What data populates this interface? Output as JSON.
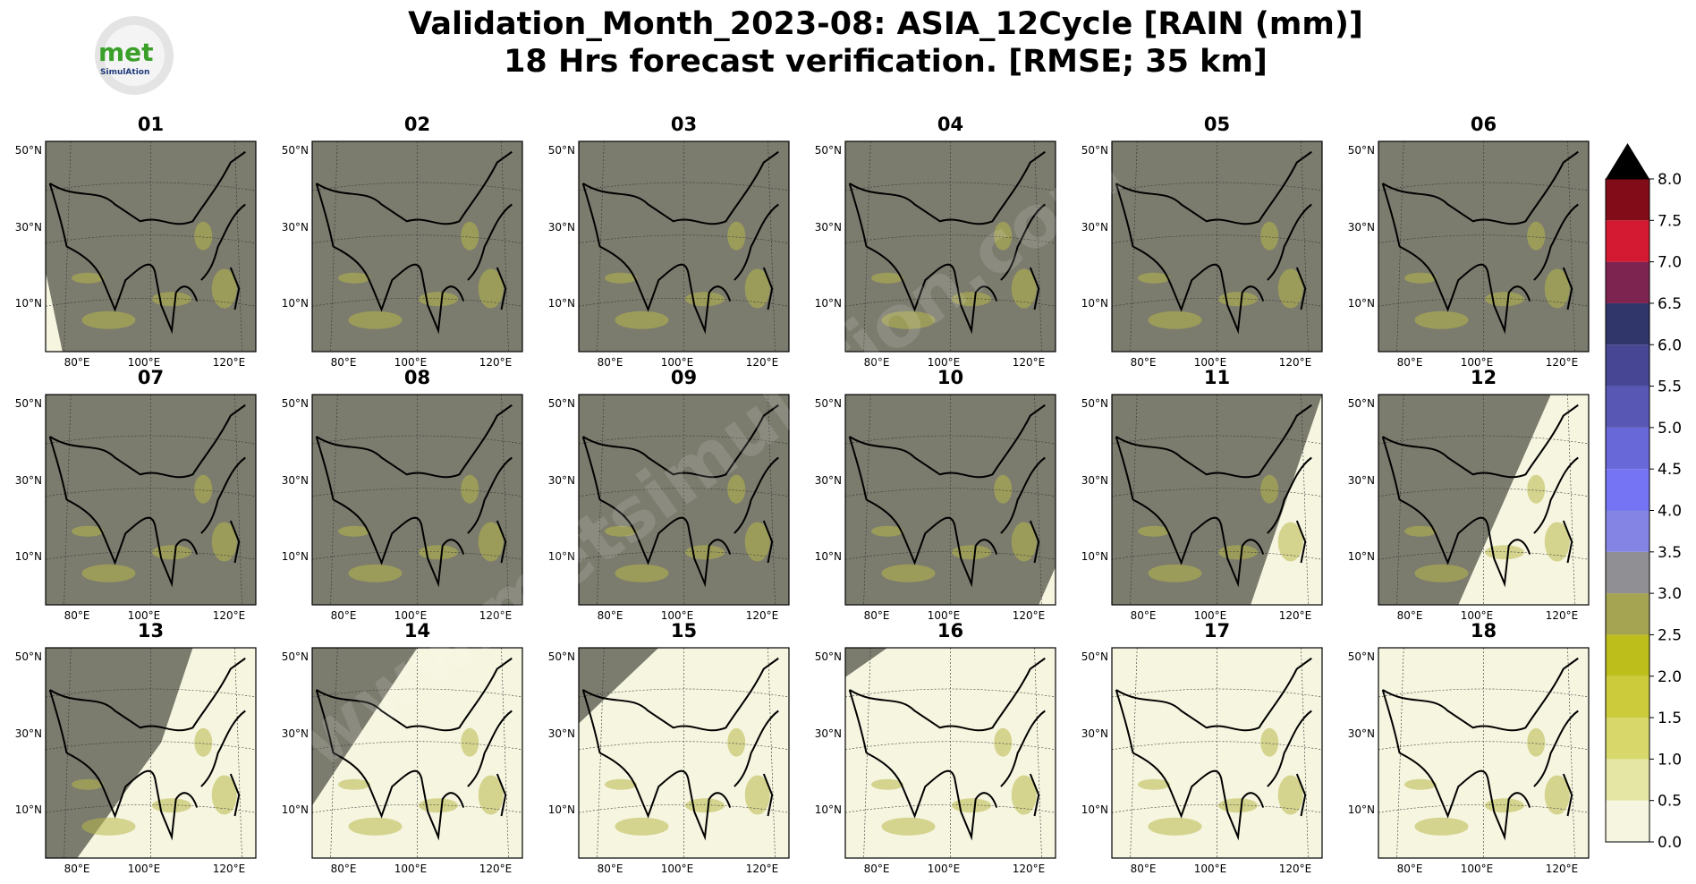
{
  "header": {
    "title_lines": [
      "Validation_Month_2023-08: ASIA_12Cycle [RAIN (mm)]",
      "18 Hrs forecast verification.  [RMSE; 35 km]"
    ]
  },
  "logo": {
    "text": "met",
    "subtext": "SimulAtion"
  },
  "watermark": "www.metsimulation.com",
  "panels": [
    "01",
    "02",
    "03",
    "04",
    "05",
    "06",
    "07",
    "08",
    "09",
    "10",
    "11",
    "12",
    "13",
    "14",
    "15",
    "16",
    "17",
    "18"
  ],
  "lat_labels": [
    "50°N",
    "30°N",
    "10°N"
  ],
  "lon_labels": [
    "80°E",
    "100°E",
    "120°E"
  ],
  "colorbar": {
    "ticks": [
      {
        "value": 0,
        "label": "0.0"
      },
      {
        "value": 0.5,
        "label": "0.5"
      },
      {
        "value": 1,
        "label": "1.0"
      },
      {
        "value": 1.5,
        "label": "1.5"
      },
      {
        "value": 2,
        "label": "2.0"
      },
      {
        "value": 2.5,
        "label": "2.5"
      },
      {
        "value": 3,
        "label": "3.0"
      },
      {
        "value": 3.5,
        "label": "3.5"
      },
      {
        "value": 4,
        "label": "4.0"
      },
      {
        "value": 4.5,
        "label": "4.5"
      },
      {
        "value": 5,
        "label": "5.0"
      },
      {
        "value": 5.5,
        "label": "5.5"
      },
      {
        "value": 6,
        "label": "6.0"
      },
      {
        "value": 6.5,
        "label": "6.5"
      },
      {
        "value": 7,
        "label": "7.0"
      },
      {
        "value": 7.5,
        "label": "7.5"
      },
      {
        "value": 8,
        "label": "8.0"
      }
    ],
    "lim": [
      0,
      8
    ],
    "colors": [
      "#f6f5e0",
      "#e5e6a4",
      "#d8d86a",
      "#cbcb3c",
      "#bdbd1c",
      "#a4a452",
      "#909094",
      "#8484e4",
      "#7474f4",
      "#6868d8",
      "#5858b4",
      "#464694",
      "#30366a",
      "#7e2450",
      "#d41a32",
      "#820c18"
    ],
    "extend_color": "#000000"
  }
}
